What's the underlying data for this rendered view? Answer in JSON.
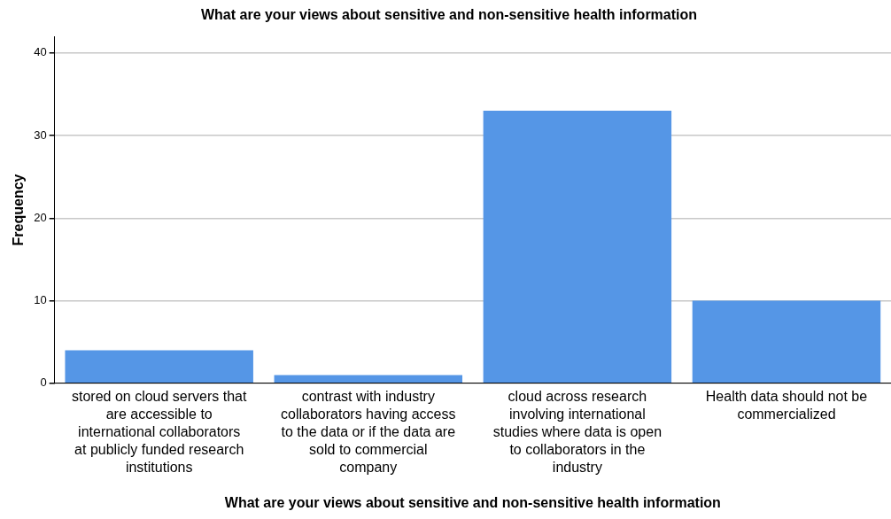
{
  "chart_data": {
    "type": "bar",
    "title": "What are your views about sensitive and non-sensitive health information",
    "xlabel": "What are your views about sensitive and non-sensitive health information",
    "ylabel": "Frequency",
    "categories": [
      "stored on cloud servers that are accessible to international collaborators at publicly funded research institutions",
      "contrast with industry collaborators having access to the data or if the data are sold to commercial company",
      "cloud across research involving international studies where data is open to collaborators in the industry",
      "Health data should not be commercialized"
    ],
    "values": [
      4,
      1,
      33,
      10
    ],
    "color": "#5596e6",
    "ylim": [
      0,
      42
    ],
    "yticks": [
      0,
      10,
      20,
      30,
      40
    ],
    "grid": "y",
    "legend": false
  }
}
